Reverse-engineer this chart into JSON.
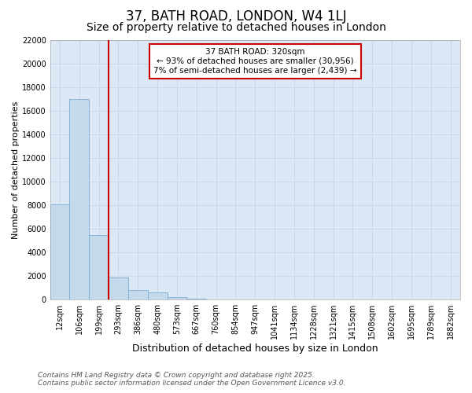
{
  "title": "37, BATH ROAD, LONDON, W4 1LJ",
  "subtitle": "Size of property relative to detached houses in London",
  "xlabel": "Distribution of detached houses by size in London",
  "ylabel": "Number of detached properties",
  "annotation_text": "37 BATH ROAD: 320sqm\n← 93% of detached houses are smaller (30,956)\n7% of semi-detached houses are larger (2,439) →",
  "footer_text": "Contains HM Land Registry data © Crown copyright and database right 2025.\nContains public sector information licensed under the Open Government Licence v3.0.",
  "bins": [
    "12sqm",
    "106sqm",
    "199sqm",
    "293sqm",
    "386sqm",
    "480sqm",
    "573sqm",
    "667sqm",
    "760sqm",
    "854sqm",
    "947sqm",
    "1041sqm",
    "1134sqm",
    "1228sqm",
    "1321sqm",
    "1415sqm",
    "1508sqm",
    "1602sqm",
    "1695sqm",
    "1789sqm",
    "1882sqm"
  ],
  "values": [
    8100,
    17000,
    5500,
    1900,
    800,
    600,
    200,
    100,
    0,
    0,
    0,
    0,
    0,
    0,
    0,
    0,
    0,
    0,
    0,
    0,
    0
  ],
  "bar_color": "#c5d9ed",
  "bar_edge_color": "#7badd4",
  "vline_x_index": 2,
  "vline_color": "#cc0000",
  "annotation_box_color": "#cc0000",
  "annotation_fill": "white",
  "ylim": [
    0,
    22000
  ],
  "yticks": [
    0,
    2000,
    4000,
    6000,
    8000,
    10000,
    12000,
    14000,
    16000,
    18000,
    20000,
    22000
  ],
  "grid_color": "#c8d8e8",
  "bg_color": "#dce8f5",
  "title_fontsize": 12,
  "subtitle_fontsize": 10,
  "tick_fontsize": 7,
  "ylabel_fontsize": 8,
  "xlabel_fontsize": 9,
  "footer_fontsize": 6.5
}
